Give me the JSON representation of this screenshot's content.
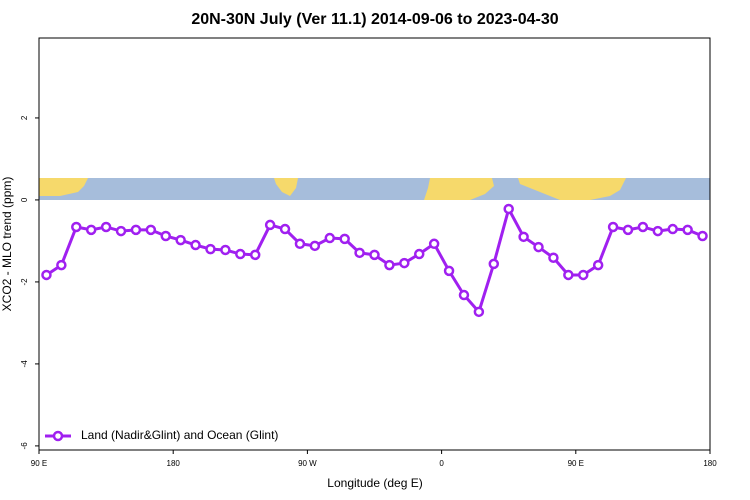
{
  "chart_data": {
    "type": "line",
    "title": "20N-30N July (Ver 11.1)   2014-09-06 to 2023-04-30",
    "x_label": "Longitude (deg E)",
    "y_label": "XCO2 - MLO trend (ppm)",
    "x": [
      95,
      105,
      115,
      125,
      135,
      145,
      155,
      165,
      175,
      185,
      195,
      205,
      215,
      225,
      235,
      245,
      255,
      265,
      275,
      285,
      295,
      305,
      315,
      325,
      335,
      345,
      355,
      365,
      375,
      385,
      395,
      405,
      415,
      425,
      435,
      445,
      455,
      465,
      475,
      485,
      495,
      505,
      515,
      525,
      535
    ],
    "series": [
      {
        "name": "Land (Nadir&Glint) and Ocean (Glint)",
        "color": "#a020f0",
        "values": [
          -1.83,
          -1.59,
          -0.66,
          -0.73,
          -0.66,
          -0.76,
          -0.73,
          -0.73,
          -0.88,
          -0.98,
          -1.1,
          -1.2,
          -1.22,
          -1.32,
          -1.34,
          -0.61,
          -0.71,
          -1.07,
          -1.12,
          -0.93,
          -0.95,
          -1.29,
          -1.34,
          -1.59,
          -1.54,
          -1.32,
          -1.07,
          -1.73,
          -2.32,
          -2.73,
          -1.56,
          -0.22,
          -0.9,
          -1.15,
          -1.41,
          -1.83,
          -1.83,
          -1.59,
          -0.66,
          -0.73,
          -0.66,
          -0.76,
          -0.71,
          -0.73,
          -0.88
        ]
      }
    ],
    "xlim": [
      90,
      540
    ],
    "xticks": [
      {
        "value": 90,
        "label": "90 E"
      },
      {
        "value": 180,
        "label": "180"
      },
      {
        "value": 270,
        "label": "90 W"
      },
      {
        "value": 360,
        "label": "0"
      },
      {
        "value": 450,
        "label": "90 E"
      },
      {
        "value": 540,
        "label": "180"
      }
    ],
    "ylim": [
      -6.1,
      3.95
    ],
    "yticks": [
      -6,
      -4,
      -2,
      0,
      2
    ],
    "legend": "bottom-left"
  }
}
